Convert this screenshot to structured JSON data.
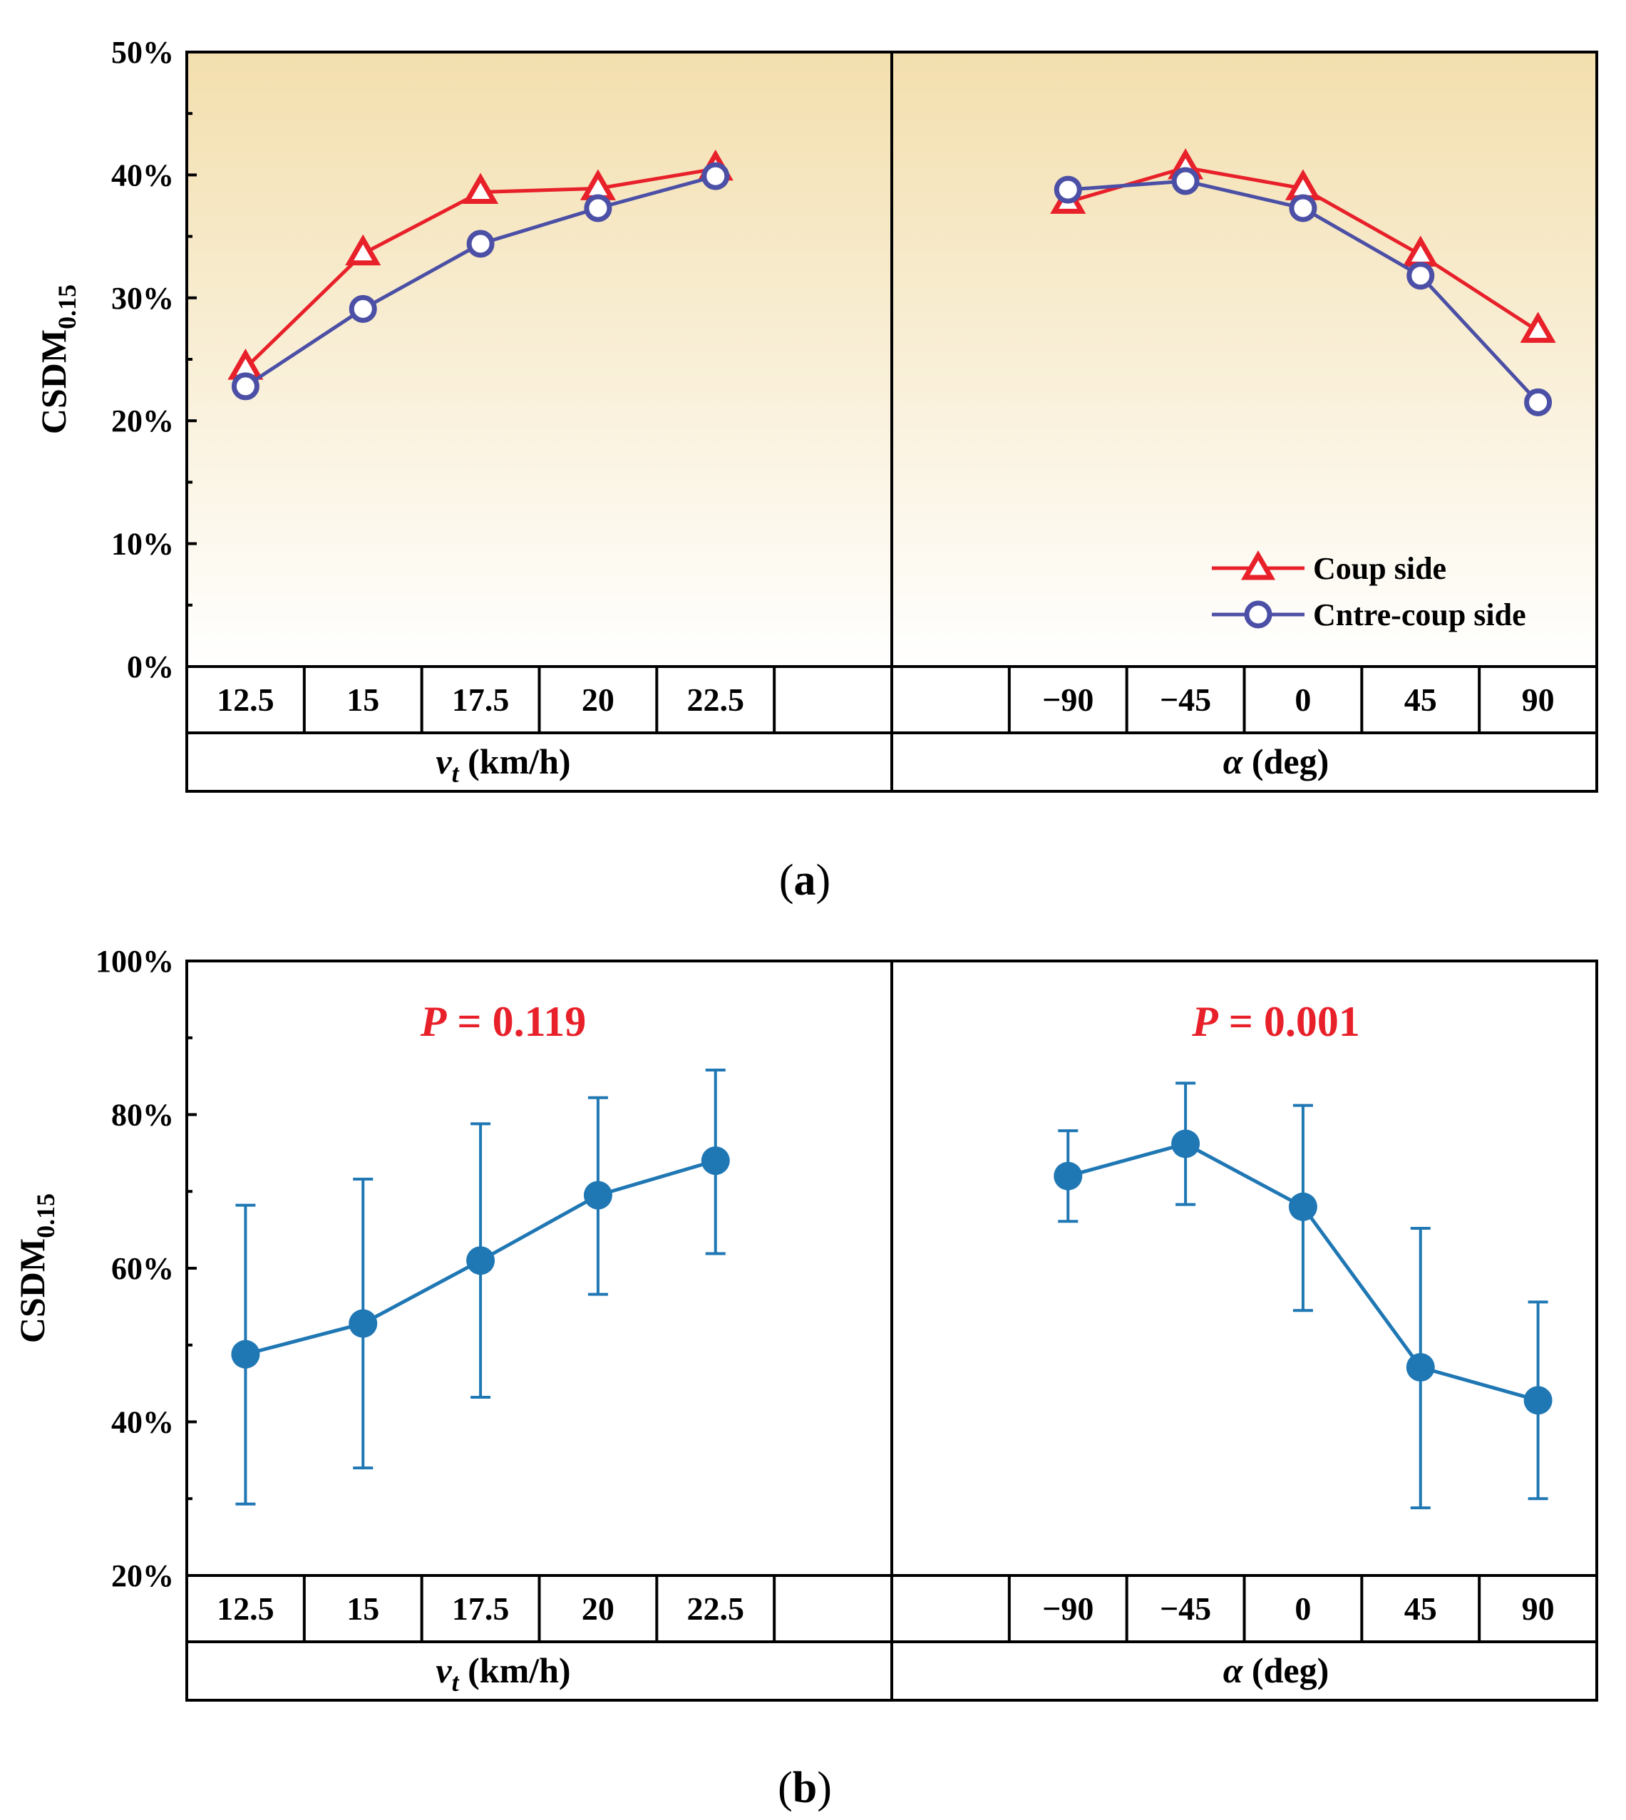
{
  "figure_labels": {
    "a_open": "(",
    "a_letter": "a",
    "a_close": ")",
    "b_open": "(",
    "b_letter": "b",
    "b_close": ")"
  },
  "colors": {
    "coup": "#e8202a",
    "contrecoup": "#4b4fa5",
    "mean": "#1f77b4",
    "p_text": "#e8202a",
    "bg_top": "#f3dfae",
    "bg_bottom": "#ffffff"
  },
  "chart_data": [
    {
      "id": "a",
      "type": "line",
      "ylabel_main": "CSDM",
      "ylabel_sub": "0.15",
      "ylim": [
        0,
        50
      ],
      "yticks": [
        "0%",
        "10%",
        "20%",
        "30%",
        "40%",
        "50%"
      ],
      "groups": [
        {
          "axis_var": "v",
          "axis_sub": "t",
          "axis_unit": " (km/h)",
          "categories": [
            "12.5",
            "15",
            "17.5",
            "20",
            "22.5",
            ""
          ]
        },
        {
          "axis_var": "α",
          "axis_sub": "",
          "axis_unit": " (deg)",
          "categories": [
            "",
            "−90",
            "−45",
            "0",
            "45",
            "90"
          ]
        }
      ],
      "legend": [
        "Coup side",
        "Cntre-coup side"
      ],
      "series": [
        {
          "name": "Coup side",
          "marker": "triangle",
          "group1": [
            24.3,
            33.6,
            38.6,
            38.9,
            40.5
          ],
          "group2": [
            37.8,
            40.6,
            38.9,
            33.5,
            27.3
          ]
        },
        {
          "name": "Cntre-coup side",
          "marker": "circle",
          "group1": [
            22.8,
            29.1,
            34.4,
            37.3,
            39.9
          ],
          "group2": [
            38.8,
            39.5,
            37.3,
            31.8,
            21.5
          ]
        }
      ]
    },
    {
      "id": "b",
      "type": "line",
      "ylabel_main": "CSDM",
      "ylabel_sub": "0.15",
      "ylim": [
        20,
        100
      ],
      "yticks": [
        "20%",
        "40%",
        "60%",
        "80%",
        "100%"
      ],
      "groups": [
        {
          "axis_var": "v",
          "axis_sub": "t",
          "axis_unit": " (km/h)",
          "categories": [
            "12.5",
            "15",
            "17.5",
            "20",
            "22.5",
            ""
          ],
          "p_italic": "P",
          "p_rest": " = 0.119",
          "means": [
            48.8,
            52.8,
            61.0,
            69.5,
            74.0
          ],
          "err_high": [
            68.2,
            71.6,
            78.8,
            82.2,
            85.8
          ],
          "err_low": [
            29.3,
            34.0,
            43.2,
            56.6,
            61.9
          ]
        },
        {
          "axis_var": "α",
          "axis_sub": "",
          "axis_unit": " (deg)",
          "categories": [
            "",
            "−90",
            "−45",
            "0",
            "45",
            "90"
          ],
          "p_italic": "P",
          "p_rest": " = 0.001",
          "means": [
            72.0,
            76.2,
            68.0,
            47.1,
            42.8
          ],
          "err_high": [
            77.9,
            84.1,
            81.2,
            65.2,
            55.6
          ],
          "err_low": [
            66.1,
            68.3,
            54.5,
            28.8,
            30.0
          ]
        }
      ]
    }
  ]
}
